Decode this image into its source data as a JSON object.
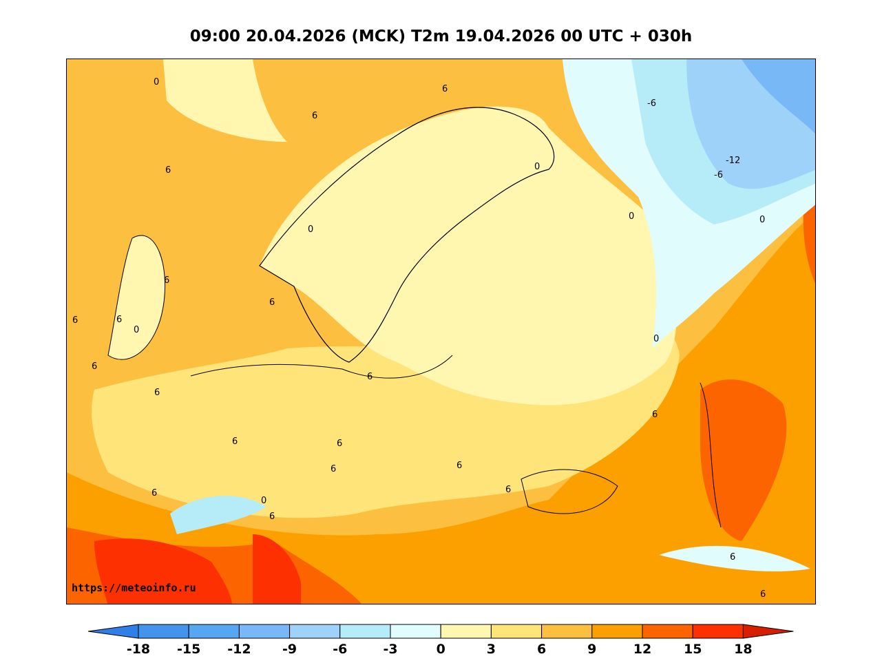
{
  "title": "09:00 20.04.2026 (MCK) T2m 19.04.2026 00 UTC + 030h",
  "watermark": "https://meteoinfo.ru",
  "colorbar": {
    "ticks": [
      "-18",
      "-15",
      "-12",
      "-9",
      "-6",
      "-3",
      "0",
      "3",
      "6",
      "9",
      "12",
      "15",
      "18"
    ],
    "colors": {
      "below_-18": "#2f7fe6",
      "-18_-15": "#4494ee",
      "-15_-12": "#56a6f2",
      "-12_-9": "#78b8f6",
      "-9_-6": "#9ed2f8",
      "-6_-3": "#b6ecf8",
      "-3_0": "#e0fcfc",
      "0_3": "#fff6b0",
      "3_6": "#ffe47a",
      "6_9": "#fcbf40",
      "9_12": "#fca000",
      "12_15": "#fc6400",
      "15_18": "#fc3000",
      "above_18": "#d81e00"
    }
  },
  "contour_labels": [
    "6",
    "0",
    "6",
    "6",
    "0",
    "6",
    "6",
    "0",
    "6",
    "6",
    "6",
    "-6",
    "-12",
    "-6",
    "0",
    "0",
    "0",
    "0",
    "6",
    "6",
    "6",
    "6",
    "6",
    "6",
    "6",
    "6",
    "0",
    "6",
    "6",
    "6",
    "6"
  ]
}
